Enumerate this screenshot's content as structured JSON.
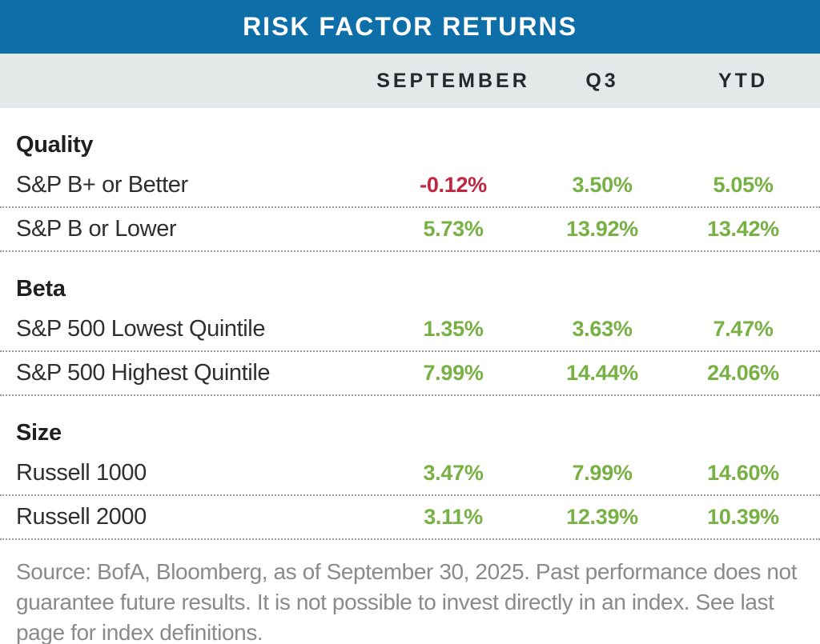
{
  "colors": {
    "header_blue": "#0E6FA8",
    "column_band_gray": "#E4E8E9",
    "positive_green": "#77B043",
    "negative_red": "#C0243F",
    "note_gray": "#8A8A8A"
  },
  "chart_data": {
    "type": "table",
    "title": "RISK FACTOR RETURNS",
    "columns": [
      "SEPTEMBER",
      "Q3",
      "YTD"
    ],
    "sections": [
      {
        "name": "Quality",
        "rows": [
          {
            "label": "S&P B+ or Better",
            "values": [
              "-0.12%",
              "3.50%",
              "5.05%"
            ],
            "numeric": [
              -0.12,
              3.5,
              5.05
            ],
            "states": [
              "neg",
              "pos",
              "pos"
            ]
          },
          {
            "label": "S&P B or Lower",
            "values": [
              "5.73%",
              "13.92%",
              "13.42%"
            ],
            "numeric": [
              5.73,
              13.92,
              13.42
            ],
            "states": [
              "pos",
              "pos",
              "pos"
            ]
          }
        ]
      },
      {
        "name": "Beta",
        "rows": [
          {
            "label": "S&P 500 Lowest Quintile",
            "values": [
              "1.35%",
              "3.63%",
              "7.47%"
            ],
            "numeric": [
              1.35,
              3.63,
              7.47
            ],
            "states": [
              "pos",
              "pos",
              "pos"
            ]
          },
          {
            "label": "S&P 500 Highest Quintile",
            "values": [
              "7.99%",
              "14.44%",
              "24.06%"
            ],
            "numeric": [
              7.99,
              14.44,
              24.06
            ],
            "states": [
              "pos",
              "pos",
              "pos"
            ]
          }
        ]
      },
      {
        "name": "Size",
        "rows": [
          {
            "label": "Russell 1000",
            "values": [
              "3.47%",
              "7.99%",
              "14.60%"
            ],
            "numeric": [
              3.47,
              7.99,
              14.6
            ],
            "states": [
              "pos",
              "pos",
              "pos"
            ]
          },
          {
            "label": "Russell 2000",
            "values": [
              "3.11%",
              "12.39%",
              "10.39%"
            ],
            "numeric": [
              3.11,
              12.39,
              10.39
            ],
            "states": [
              "pos",
              "pos",
              "pos"
            ]
          }
        ]
      }
    ],
    "source_note": "Source: BofA, Bloomberg, as of September 30, 2025. Past performance does not guarantee future results. It is not possible to invest directly in an index. See last page for index definitions."
  }
}
